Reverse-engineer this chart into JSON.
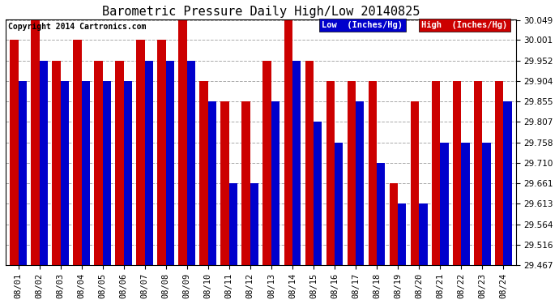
{
  "title": "Barometric Pressure Daily High/Low 20140825",
  "copyright": "Copyright 2014 Cartronics.com",
  "dates": [
    "08/01",
    "08/02",
    "08/03",
    "08/04",
    "08/05",
    "08/06",
    "08/07",
    "08/08",
    "08/09",
    "08/10",
    "08/11",
    "08/12",
    "08/13",
    "08/14",
    "08/15",
    "08/16",
    "08/17",
    "08/18",
    "08/19",
    "08/20",
    "08/21",
    "08/22",
    "08/23",
    "08/24"
  ],
  "low": [
    29.904,
    29.952,
    29.904,
    29.904,
    29.904,
    29.904,
    29.952,
    29.952,
    29.952,
    29.855,
    29.661,
    29.661,
    29.855,
    29.952,
    29.807,
    29.758,
    29.855,
    29.71,
    29.613,
    29.613,
    29.758,
    29.758,
    29.758,
    29.855
  ],
  "high": [
    30.001,
    30.049,
    29.952,
    30.001,
    29.952,
    29.952,
    30.001,
    30.001,
    30.049,
    29.904,
    29.855,
    29.855,
    29.952,
    30.049,
    29.952,
    29.904,
    29.904,
    29.904,
    29.661,
    29.855,
    29.904,
    29.904,
    29.904,
    29.904
  ],
  "low_color": "#0000cc",
  "high_color": "#cc0000",
  "bg_color": "#ffffff",
  "grid_color": "#aaaaaa",
  "title_color": "#000000",
  "ymin": 29.467,
  "ymax": 30.049,
  "yticks": [
    29.467,
    29.516,
    29.564,
    29.613,
    29.661,
    29.71,
    29.758,
    29.807,
    29.855,
    29.904,
    29.952,
    30.001,
    30.049
  ],
  "title_fontsize": 11,
  "tick_fontsize": 7.5,
  "copyright_fontsize": 7
}
